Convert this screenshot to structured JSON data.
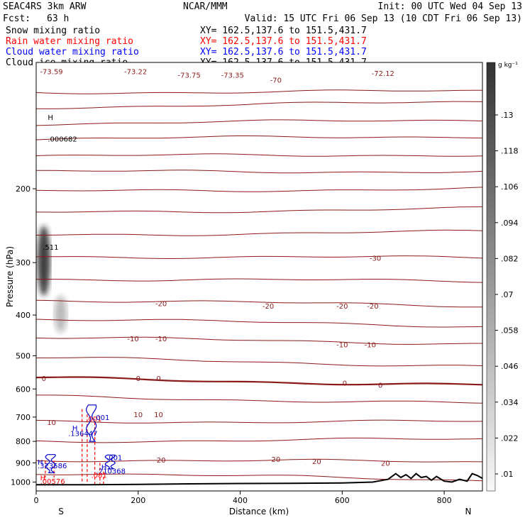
{
  "header": {
    "model": "SEAC4RS  3km ARW",
    "center": "NCAR/MMM",
    "init": "Init: 00 UTC Wed 04 Sep 13",
    "fcst_label": "Fcst:",
    "fcst_value": "63 h",
    "valid": "Valid: 15 UTC Fri 06 Sep 13 (10 CDT Fri 06 Sep 13)"
  },
  "fields": [
    {
      "name": "Snow mixing ratio",
      "xy": "XY= 162.5,137.6 to 151.5,431.7",
      "color": "#000000"
    },
    {
      "name": "Rain water mixing ratio",
      "xy": "XY= 162.5,137.6 to 151.5,431.7",
      "color": "#ff0000"
    },
    {
      "name": "Cloud water mixing ratio",
      "xy": "XY= 162.5,137.6 to 151.5,431.7",
      "color": "#0000ff"
    },
    {
      "name": "Cloud ice mixing ratio",
      "xy": "XY= 162.5,137.6 to 151.5,431.7",
      "color": "#000000"
    }
  ],
  "colors": {
    "isotherm": "#8b1a1a",
    "rain": "#ff0000",
    "cloud": "#0000cc",
    "terrain": "#000000"
  },
  "chart_data": {
    "type": "cross-section",
    "xlabel": "Distance (km)",
    "ylabel": "Pressure (hPa)",
    "xlim": [
      0,
      875
    ],
    "ylim": [
      1050,
      100
    ],
    "y_scale": "log",
    "x_ticks": [
      0,
      200,
      400,
      600,
      800
    ],
    "y_ticks": [
      200,
      300,
      400,
      500,
      600,
      700,
      800,
      900,
      1000
    ],
    "x_end_labels": {
      "left": "S",
      "right": "N"
    },
    "colorbar": {
      "unit": "g kg⁻¹",
      "levels": [
        0.01,
        0.022,
        0.034,
        0.046,
        0.058,
        0.07,
        0.082,
        0.094,
        0.106,
        0.118,
        0.13
      ],
      "labels": [
        ".01",
        ".022",
        ".034",
        ".046",
        ".058",
        ".07",
        ".082",
        ".094",
        ".106",
        ".118",
        ".13"
      ]
    },
    "temperature_labels": [
      {
        "x": 30,
        "p": 105,
        "text": "-73.59"
      },
      {
        "x": 195,
        "p": 105,
        "text": "-73.22"
      },
      {
        "x": 300,
        "p": 107,
        "text": "-73.75"
      },
      {
        "x": 385,
        "p": 107,
        "text": "-73.35"
      },
      {
        "x": 470,
        "p": 110,
        "text": "-70"
      },
      {
        "x": 680,
        "p": 106,
        "text": "-72.12"
      },
      {
        "x": 665,
        "p": 292,
        "text": "-30"
      },
      {
        "x": 245,
        "p": 375,
        "text": "-20"
      },
      {
        "x": 455,
        "p": 380,
        "text": "-20"
      },
      {
        "x": 600,
        "p": 380,
        "text": "-20"
      },
      {
        "x": 660,
        "p": 380,
        "text": "-20"
      },
      {
        "x": 190,
        "p": 455,
        "text": "-10"
      },
      {
        "x": 245,
        "p": 455,
        "text": "-10"
      },
      {
        "x": 600,
        "p": 470,
        "text": "-10"
      },
      {
        "x": 655,
        "p": 470,
        "text": "-10"
      },
      {
        "x": 15,
        "p": 565,
        "text": "0"
      },
      {
        "x": 200,
        "p": 565,
        "text": "0"
      },
      {
        "x": 240,
        "p": 565,
        "text": "0"
      },
      {
        "x": 605,
        "p": 580,
        "text": "0"
      },
      {
        "x": 675,
        "p": 587,
        "text": "0"
      },
      {
        "x": 30,
        "p": 720,
        "text": "10"
      },
      {
        "x": 200,
        "p": 690,
        "text": "10"
      },
      {
        "x": 240,
        "p": 690,
        "text": "10"
      },
      {
        "x": 245,
        "p": 885,
        "text": "20"
      },
      {
        "x": 470,
        "p": 882,
        "text": "20"
      },
      {
        "x": 550,
        "p": 892,
        "text": "20"
      },
      {
        "x": 685,
        "p": 900,
        "text": "20"
      }
    ],
    "temperature_contours": [
      {
        "level": -73,
        "p_west": 118,
        "p_east": 117
      },
      {
        "level": -70,
        "p_west": 128,
        "p_east": 124
      },
      {
        "level": -65,
        "p_west": 140,
        "p_east": 137
      },
      {
        "level": -60,
        "p_west": 152,
        "p_east": 150
      },
      {
        "level": -55,
        "p_west": 167,
        "p_east": 166
      },
      {
        "level": -50,
        "p_west": 182,
        "p_east": 182
      },
      {
        "level": -45,
        "p_west": 203,
        "p_east": 200
      },
      {
        "level": -40,
        "p_west": 228,
        "p_east": 223
      },
      {
        "level": -35,
        "p_west": 258,
        "p_east": 253
      },
      {
        "level": -30,
        "p_west": 290,
        "p_east": 292
      },
      {
        "level": -25,
        "p_west": 328,
        "p_east": 332
      },
      {
        "level": -20,
        "p_west": 368,
        "p_east": 380
      },
      {
        "level": -15,
        "p_west": 408,
        "p_east": 425
      },
      {
        "level": -10,
        "p_west": 452,
        "p_east": 468
      },
      {
        "level": -5,
        "p_west": 505,
        "p_east": 530
      },
      {
        "level": 0,
        "p_west": 565,
        "p_east": 588
      },
      {
        "level": 5,
        "p_west": 625,
        "p_east": 650
      },
      {
        "level": 10,
        "p_west": 718,
        "p_east": 718
      },
      {
        "level": 15,
        "p_west": 800,
        "p_east": 790
      },
      {
        "level": 20,
        "p_west": 885,
        "p_east": 895
      },
      {
        "level": 25,
        "p_west": 950,
        "p_east": 990
      }
    ],
    "extrema_labels": [
      {
        "x": 20,
        "p": 135,
        "text": "H",
        "color": "#000000"
      },
      {
        "x": 20,
        "p": 152,
        "text": ".000682",
        "color": "#000000"
      },
      {
        "x": 10,
        "p": 275,
        "text": ".511",
        "color": "#000000"
      },
      {
        "x": 95,
        "p": 706,
        "text": ".001",
        "color": "#ff0000"
      },
      {
        "x": 110,
        "p": 700,
        "text": ".001",
        "color": "#0000cc"
      },
      {
        "x": 68,
        "p": 742,
        "text": "H",
        "color": "#0000cc"
      },
      {
        "x": 60,
        "p": 765,
        "text": ".136447",
        "color": "#0000cc"
      },
      {
        "x": 135,
        "p": 872,
        "text": ".001",
        "color": "#0000cc"
      },
      {
        "x": 0,
        "p": 895,
        "text": "H",
        "color": "#0000cc"
      },
      {
        "x": 0,
        "p": 912,
        "text": ".323586",
        "color": "#0000cc"
      },
      {
        "x": 125,
        "p": 920,
        "text": "H",
        "color": "#0000cc"
      },
      {
        "x": 115,
        "p": 940,
        "text": ".210368",
        "color": "#0000cc"
      },
      {
        "x": 105,
        "p": 962,
        "text": ".001",
        "color": "#ff0000"
      },
      {
        "x": 5,
        "p": 975,
        "text": "H",
        "color": "#ff0000"
      },
      {
        "x": 5,
        "p": 995,
        "text": ".00576",
        "color": "#ff0000"
      }
    ],
    "cloud_ice": [
      {
        "x": 15,
        "p_top": 245,
        "p_bottom": 360,
        "intensity": 0.85
      },
      {
        "x": 48,
        "p_top": 360,
        "p_bottom": 440,
        "intensity": 0.3
      }
    ],
    "cloud_water": [
      {
        "x": 108,
        "p_top": 655,
        "p_bottom": 800
      },
      {
        "x": 28,
        "p_top": 860,
        "p_bottom": 950
      },
      {
        "x": 145,
        "p_top": 862,
        "p_bottom": 930
      }
    ],
    "rain_water": [
      {
        "x": 90,
        "p_top": 670,
        "p_bottom": 1010
      },
      {
        "x": 100,
        "p_top": 690,
        "p_bottom": 1010
      },
      {
        "x": 115,
        "p_top": 720,
        "p_bottom": 1010
      },
      {
        "x": 125,
        "p_top": 900,
        "p_bottom": 1010
      },
      {
        "x": 132,
        "p_top": 945,
        "p_bottom": 1010
      },
      {
        "x": 18,
        "p_top": 890,
        "p_bottom": 975
      },
      {
        "x": 35,
        "p_top": 890,
        "p_bottom": 975
      }
    ],
    "terrain_surface": {
      "x": [
        0,
        100,
        200,
        300,
        400,
        500,
        600,
        660,
        690,
        705,
        715,
        725,
        735,
        745,
        755,
        765,
        775,
        785,
        800,
        815,
        830,
        845,
        855,
        865,
        875
      ],
      "p": [
        1015,
        1015,
        1013,
        1010,
        1008,
        1007,
        1005,
        1000,
        985,
        955,
        975,
        960,
        980,
        955,
        975,
        970,
        990,
        970,
        995,
        1000,
        985,
        995,
        955,
        965,
        980
      ]
    }
  }
}
